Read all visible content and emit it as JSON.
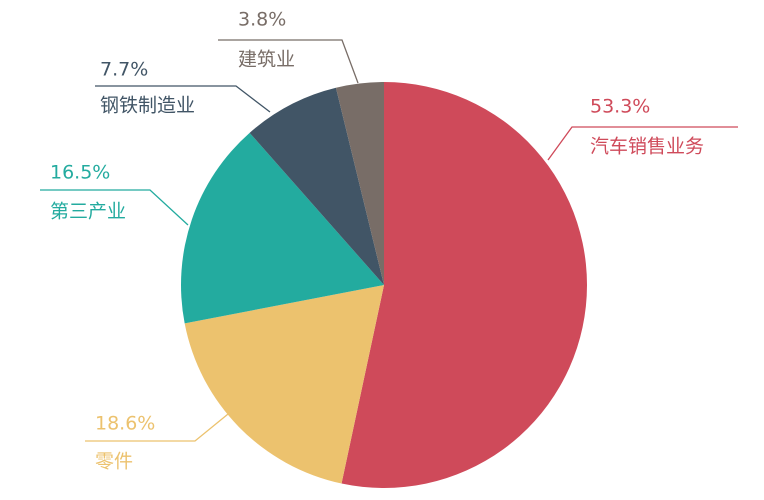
{
  "chart_data": {
    "type": "pie",
    "categories": [
      "汽车销售业务",
      "零件",
      "第三产业",
      "钢铁制造业",
      "建筑业"
    ],
    "values": [
      53.3,
      18.6,
      16.5,
      7.7,
      3.8
    ],
    "value_labels": [
      "53.3%",
      "18.6%",
      "16.5%",
      "7.7%",
      "3.8%"
    ],
    "colors": [
      "#cf4a5a",
      "#ecc26e",
      "#23ab9f",
      "#415566",
      "#786d67"
    ]
  }
}
